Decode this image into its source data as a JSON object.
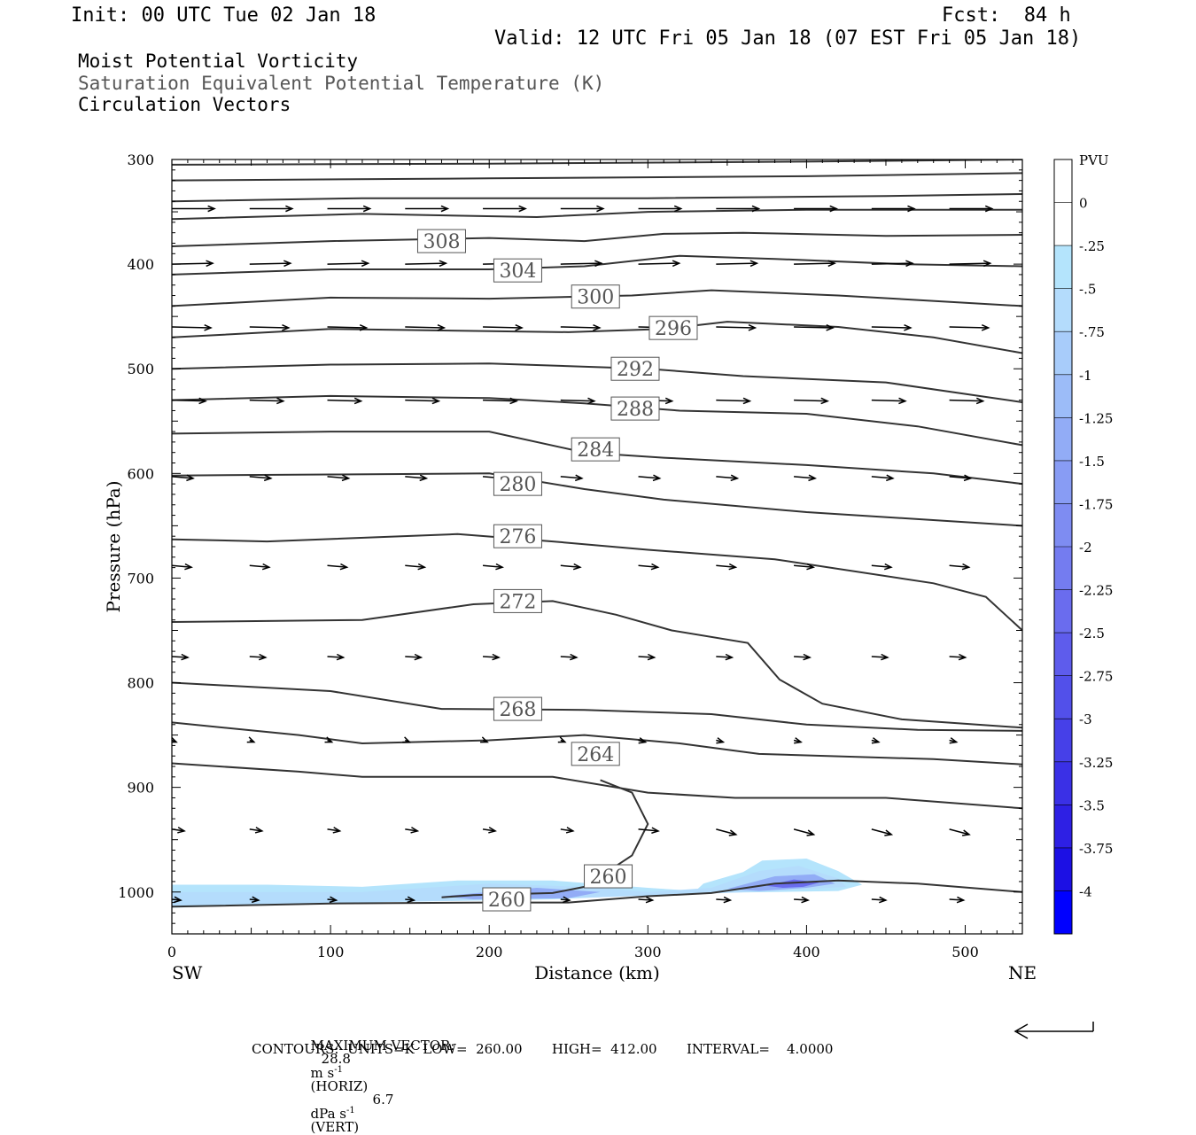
{
  "header": {
    "init": "Init: 00 UTC Tue 02 Jan 18",
    "fcst": "Fcst:  84 h",
    "valid": "Valid: 12 UTC Fri 05 Jan 18 (07 EST Fri 05 Jan 18)",
    "field1": "Moist Potential Vorticity",
    "field2": "Saturation Equivalent Potential Temperature (K)",
    "field3": "Circulation Vectors"
  },
  "colors": {
    "contour": "#333333",
    "vector": "#000000"
  },
  "chart_data": {
    "type": "contour",
    "xlabel": "Distance (km)",
    "ylabel": "Pressure (hPa)",
    "xlim": [
      0,
      536
    ],
    "ylim": [
      1040,
      300
    ],
    "x_ticks": [
      "0",
      "100",
      "200",
      "300",
      "400",
      "500"
    ],
    "y_ticks": [
      "300",
      "400",
      "500",
      "600",
      "700",
      "800",
      "900",
      "1000"
    ],
    "left_end": "SW",
    "right_end": "NE",
    "colorbar": {
      "title": "PVU",
      "labels": [
        "0",
        "-.25",
        "-.5",
        "-.75",
        "-1",
        "-1.25",
        "-1.5",
        "-1.75",
        "-2",
        "-2.25",
        "-2.5",
        "-2.75",
        "-3",
        "-3.25",
        "-3.5",
        "-3.75",
        "-4"
      ],
      "colors": [
        "#ffffff",
        "#ffffff",
        "#b4e4fc",
        "#b4dcfc",
        "#a8ccfa",
        "#9cbcf8",
        "#92acf6",
        "#889cf4",
        "#7e8cf2",
        "#747cf0",
        "#6a6cee",
        "#5e5cec",
        "#5250ea",
        "#4640e8",
        "#3a30e6",
        "#2e20e4",
        "#1c10e4",
        "#0000ff"
      ]
    },
    "contour_levels": [
      {
        "label": "308",
        "x": 170,
        "p": 378
      },
      {
        "label": "304",
        "x": 218,
        "p": 406
      },
      {
        "label": "300",
        "x": 267,
        "p": 431
      },
      {
        "label": "296",
        "x": 316,
        "p": 461
      },
      {
        "label": "292",
        "x": 292,
        "p": 500
      },
      {
        "label": "288",
        "x": 292,
        "p": 538
      },
      {
        "label": "284",
        "x": 267,
        "p": 577
      },
      {
        "label": "280",
        "x": 218,
        "p": 610
      },
      {
        "label": "276",
        "x": 218,
        "p": 660
      },
      {
        "label": "272",
        "x": 218,
        "p": 722
      },
      {
        "label": "268",
        "x": 218,
        "p": 825
      },
      {
        "label": "264",
        "x": 267,
        "p": 868
      },
      {
        "label": "260",
        "x": 275,
        "p": 985
      },
      {
        "label": "260",
        "x": 211,
        "p": 1007
      }
    ],
    "footer": {
      "max_vector_label": "MAXIMUM VECTOR:",
      "horiz_value": "28.8",
      "horiz_units": "m s",
      "horiz_tag": "(HORIZ)",
      "vert_value": "6.7",
      "vert_units": "dPa s",
      "vert_tag": "(VERT)",
      "superscript": "-1",
      "contours_line": "CONTOURS:  UNITS=K  LOW=  260.00       HIGH=  412.00       INTERVAL=    4.0000"
    }
  }
}
